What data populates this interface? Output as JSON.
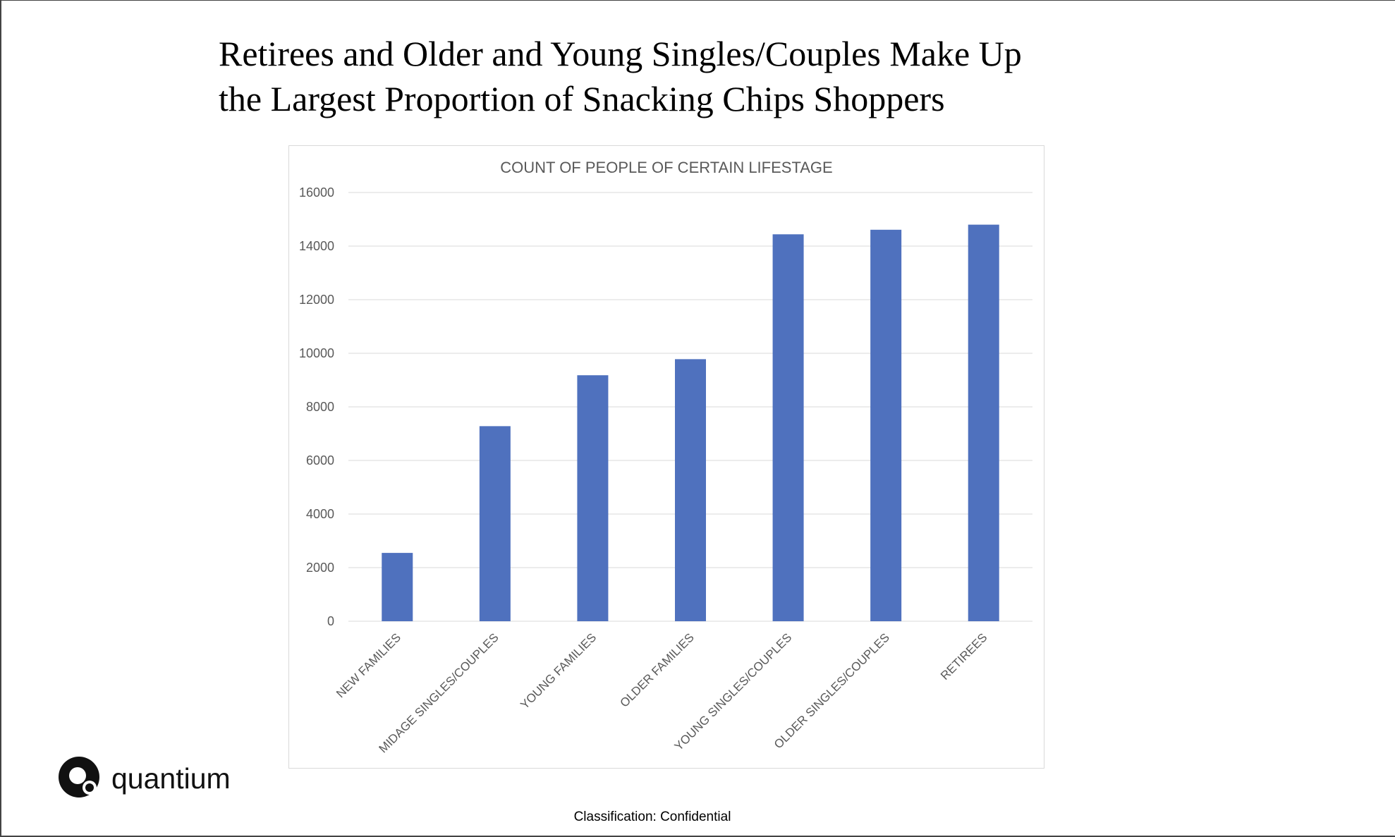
{
  "slide": {
    "title_lines": [
      "Retirees and Older and Young Singles/Couples Make Up",
      "the Largest Proportion of Snacking Chips Shoppers"
    ],
    "logo_text": "quantium",
    "classification": "Classification: Confidential"
  },
  "colors": {
    "bar": "#4f71be",
    "grid": "#d9d9d9",
    "axis_text": "#595959"
  },
  "chart_data": {
    "type": "bar",
    "title": "COUNT OF PEOPLE OF CERTAIN LIFESTAGE",
    "categories": [
      "NEW FAMILIES",
      "MIDAGE SINGLES/COUPLES",
      "YOUNG FAMILIES",
      "OLDER FAMILIES",
      "YOUNG SINGLES/COUPLES",
      "OLDER SINGLES/COUPLES",
      "RETIREES"
    ],
    "values": [
      2550,
      7280,
      9180,
      9780,
      14440,
      14610,
      14800
    ],
    "ylim": [
      0,
      16000
    ],
    "yticks": [
      0,
      2000,
      4000,
      6000,
      8000,
      10000,
      12000,
      14000,
      16000
    ],
    "grid": true,
    "legend": "none"
  }
}
